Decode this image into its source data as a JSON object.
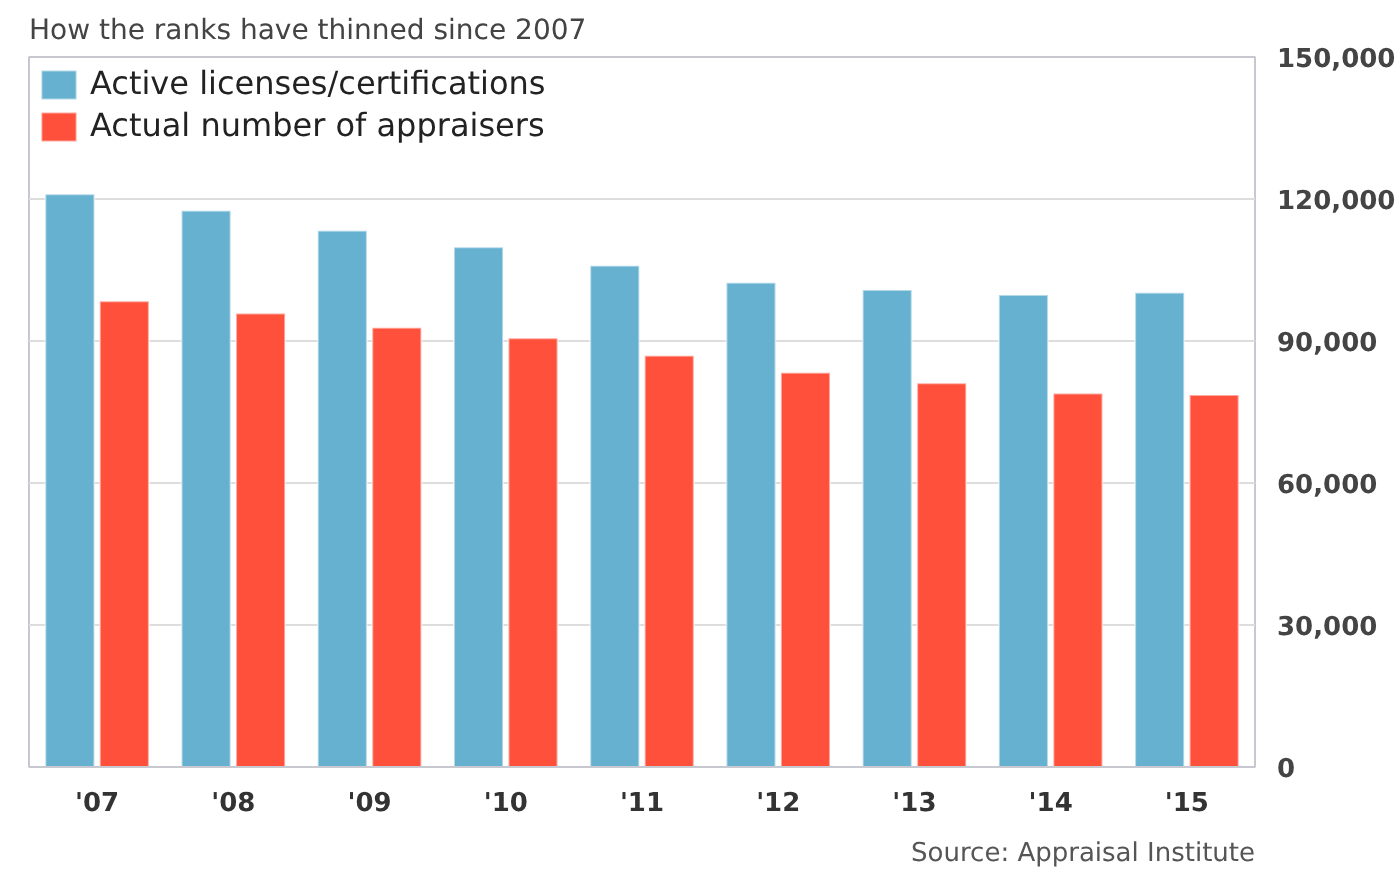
{
  "chart_data": {
    "type": "bar",
    "title": "How the ranks have thinned since 2007",
    "categories": [
      "'07",
      "'08",
      "'09",
      "'10",
      "'11",
      "'12",
      "'13",
      "'14",
      "'15"
    ],
    "series": [
      {
        "name": "Active licenses/certifications",
        "color": "#66b1d0",
        "values": [
          121000,
          117500,
          113300,
          109800,
          105900,
          102300,
          100800,
          99700,
          100200
        ]
      },
      {
        "name": "Actual number of appraisers",
        "color": "#ff503c",
        "values": [
          98400,
          95800,
          92800,
          90600,
          86900,
          83300,
          81100,
          78900,
          78600
        ]
      }
    ],
    "ylim": [
      0,
      150000
    ],
    "yticks": [
      {
        "value": 0,
        "label": "0"
      },
      {
        "value": 30000,
        "label": "30,000"
      },
      {
        "value": 60000,
        "label": "60,000"
      },
      {
        "value": 90000,
        "label": "90,000"
      },
      {
        "value": 120000,
        "label": "120,000"
      },
      {
        "value": 150000,
        "label": "150,000"
      }
    ],
    "grid": "y",
    "legend": "top left",
    "annotations": [
      "Source: Appraisal Institute"
    ]
  }
}
